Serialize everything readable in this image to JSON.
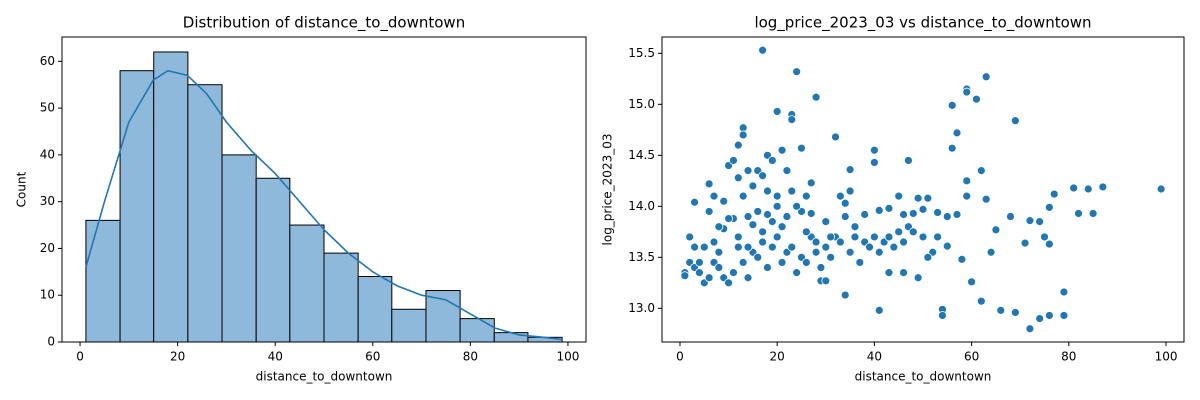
{
  "chart_data": [
    {
      "type": "histogram",
      "title": "Distribution of distance_to_downtown",
      "xlabel": "distance_to_downtown",
      "ylabel": "Count",
      "bins": [
        1.2,
        8.2,
        15.1,
        22.1,
        29.1,
        36.1,
        43.0,
        50.0,
        57.0,
        63.9,
        70.9,
        77.9,
        84.9,
        91.8,
        98.8
      ],
      "values": [
        26,
        58,
        62,
        55,
        40,
        35,
        25,
        19,
        14,
        7,
        11,
        5,
        2,
        1
      ],
      "color": "#8fb9da",
      "edgecolor": "#000000",
      "kde": {
        "color": "#1f77b4",
        "x": [
          1.2,
          5,
          10,
          15,
          18,
          22,
          26,
          30,
          35,
          40,
          45,
          50,
          55,
          60,
          65,
          70,
          75,
          80,
          85,
          90,
          95,
          99
        ],
        "values": [
          16,
          30,
          47,
          56,
          58,
          57,
          53,
          47,
          41,
          36,
          30,
          24,
          19,
          15,
          12,
          10,
          9,
          6,
          3,
          1.5,
          1,
          0.5
        ]
      },
      "xlim": [
        -3.7,
        103.7
      ],
      "xticks": [
        0,
        20,
        40,
        60,
        80,
        100
      ],
      "ylim": [
        0,
        65.2
      ],
      "yticks": [
        0,
        10,
        20,
        30,
        40,
        50,
        60
      ]
    },
    {
      "type": "scatter",
      "title": "log_price_2023_03 vs distance_to_downtown",
      "xlabel": "distance_to_downtown",
      "ylabel": "log_price_2023_03",
      "color": "#1f77b4",
      "edgecolor": "#ffffff",
      "x": [
        17,
        24,
        28,
        23,
        23,
        20,
        13,
        13,
        12,
        18,
        21,
        25,
        32,
        40,
        40,
        47,
        35,
        59,
        59,
        61,
        56,
        63,
        69,
        57,
        56,
        62,
        59,
        63,
        59,
        99,
        87,
        84,
        81,
        77,
        76,
        82,
        85,
        74,
        72,
        68,
        65,
        75,
        71,
        76,
        64,
        58,
        60,
        62,
        66,
        69,
        72,
        74,
        76,
        79,
        79,
        54,
        54,
        41,
        34,
        29,
        30,
        43,
        46,
        49,
        52,
        51,
        55,
        53,
        55,
        57,
        53,
        50,
        51,
        49,
        46,
        48,
        45,
        43,
        41,
        38,
        36,
        34,
        34,
        35,
        33,
        27,
        26,
        27,
        25,
        22,
        20,
        18,
        15,
        14,
        11,
        10,
        9,
        8,
        6,
        6,
        7,
        3,
        2,
        1,
        1,
        2,
        3,
        4,
        5,
        5,
        6,
        7,
        8,
        9,
        10,
        11,
        12,
        13,
        14,
        15,
        16,
        17,
        18,
        19,
        20,
        21,
        22,
        23,
        24,
        25,
        26,
        27,
        28,
        29,
        30,
        31,
        32,
        33,
        35,
        36,
        37,
        38,
        39,
        40,
        41,
        42,
        43,
        44,
        45,
        46,
        47,
        48,
        50,
        9,
        10,
        11,
        12,
        14,
        15,
        16,
        17,
        18,
        19,
        20,
        22,
        23,
        24,
        21,
        19,
        16,
        13,
        12,
        14,
        17,
        26,
        28,
        30,
        31,
        7,
        8,
        4,
        3
      ],
      "values": [
        15.53,
        15.32,
        15.07,
        14.9,
        14.85,
        14.93,
        14.77,
        14.7,
        14.6,
        14.5,
        14.55,
        14.57,
        14.68,
        14.55,
        14.43,
        14.45,
        14.36,
        15.15,
        15.12,
        15.05,
        14.99,
        15.27,
        14.84,
        14.72,
        14.57,
        14.35,
        14.25,
        14.07,
        14.1,
        14.17,
        14.19,
        14.17,
        14.18,
        14.12,
        13.99,
        13.93,
        13.93,
        13.85,
        13.86,
        13.9,
        13.77,
        13.7,
        13.64,
        13.63,
        13.55,
        13.48,
        13.26,
        13.07,
        12.98,
        12.96,
        12.8,
        12.9,
        12.93,
        12.93,
        13.16,
        12.99,
        12.93,
        12.98,
        13.13,
        13.27,
        13.27,
        13.35,
        13.35,
        13.3,
        13.55,
        13.5,
        13.61,
        13.7,
        13.9,
        13.92,
        13.94,
        13.97,
        14.08,
        14.08,
        13.92,
        13.93,
        14.1,
        13.98,
        13.96,
        13.92,
        13.8,
        13.9,
        14.03,
        14.15,
        14.1,
        14.23,
        14.1,
        13.93,
        13.95,
        13.9,
        14.0,
        13.92,
        13.82,
        13.9,
        13.88,
        13.88,
        13.78,
        13.8,
        13.95,
        14.22,
        14.1,
        14.04,
        13.7,
        13.35,
        13.32,
        13.45,
        13.4,
        13.35,
        13.6,
        13.25,
        13.3,
        13.45,
        13.55,
        13.3,
        13.25,
        13.35,
        13.6,
        13.45,
        13.3,
        13.55,
        13.5,
        13.65,
        13.4,
        13.6,
        13.7,
        13.45,
        13.55,
        13.6,
        13.35,
        13.5,
        13.45,
        13.7,
        13.55,
        13.4,
        13.6,
        13.5,
        13.7,
        13.65,
        13.55,
        13.7,
        13.45,
        13.65,
        13.6,
        13.7,
        13.55,
        13.65,
        13.7,
        13.6,
        13.75,
        13.65,
        13.8,
        13.75,
        13.7,
        14.05,
        14.4,
        14.45,
        14.28,
        14.35,
        14.2,
        14.35,
        14.3,
        14.15,
        14.45,
        14.1,
        14.35,
        14.15,
        14.0,
        13.8,
        13.85,
        13.95,
        14.1,
        13.7,
        13.6,
        13.75,
        13.75,
        13.65,
        13.85,
        13.7,
        13.65,
        13.4,
        13.45,
        13.6
      ],
      "xlim": [
        -3.7,
        103.7
      ],
      "xticks": [
        0,
        20,
        40,
        60,
        80,
        100
      ],
      "ylim": [
        12.67,
        15.66
      ],
      "yticks": [
        {
          "value": 13,
          "label": "13.0"
        },
        13.5,
        {
          "value": 14,
          "label": "14.0"
        },
        14.5,
        {
          "value": 15,
          "label": "15.0"
        },
        15.5
      ]
    }
  ]
}
